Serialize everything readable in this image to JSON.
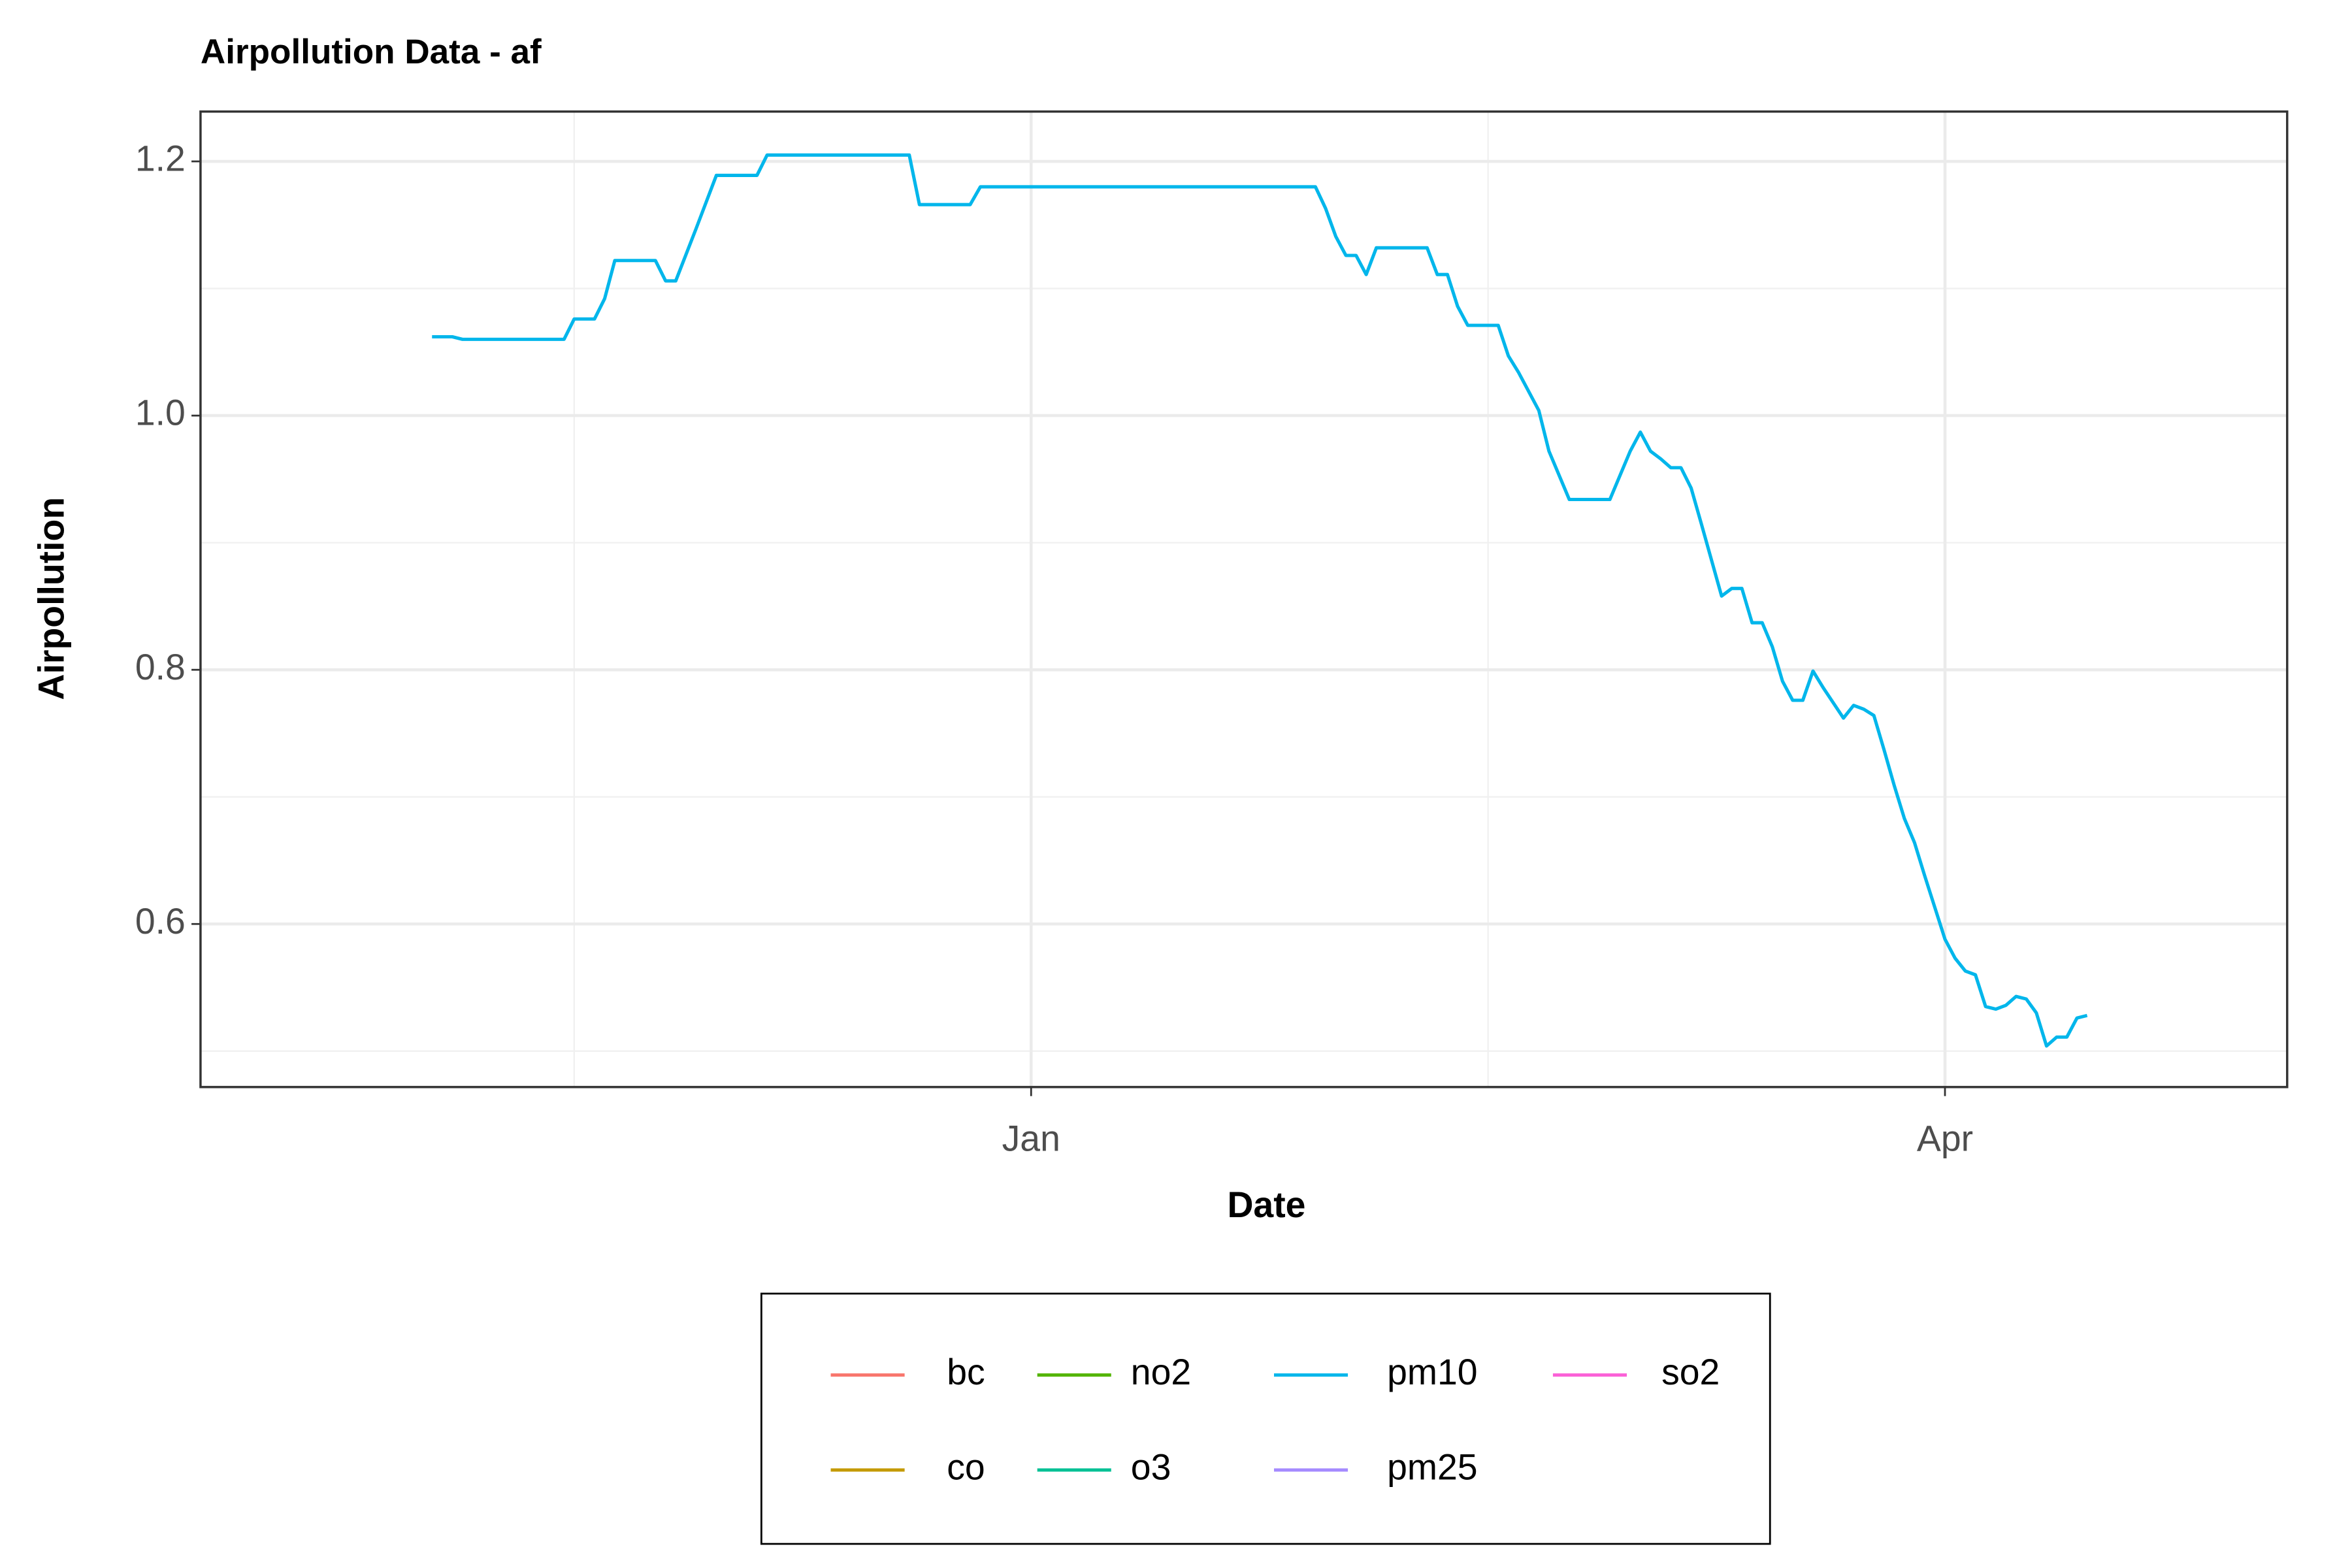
{
  "chart_data": {
    "type": "line",
    "title": "Airpollution Data - af",
    "x_label": "Date",
    "y_label": "Airpollution",
    "xlim": [
      -81.8,
      123.7
    ],
    "xticks": [
      {
        "value": 0,
        "label": "Jan"
      },
      {
        "value": 90,
        "label": "Apr"
      }
    ],
    "ylim": [
      0.4717,
      1.2392
    ],
    "yticks": [
      {
        "value": 0.6,
        "label": "0.6"
      },
      {
        "value": 0.8,
        "label": "0.8"
      },
      {
        "value": 1.0,
        "label": "1.0"
      },
      {
        "value": 1.2,
        "label": "1.2"
      }
    ],
    "grid": true,
    "legend_position": "bottom",
    "series": [
      {
        "name": "bc",
        "color": "#F8766D",
        "x": [],
        "values": []
      },
      {
        "name": "co",
        "color": "#C49A00",
        "x": [],
        "values": []
      },
      {
        "name": "no2",
        "color": "#53B400",
        "x": [],
        "values": []
      },
      {
        "name": "o3",
        "color": "#00C094",
        "x": [],
        "values": []
      },
      {
        "name": "pm10",
        "color": "#00B6EB",
        "x": [
          -59,
          -57,
          -56,
          -46,
          -45,
          -43,
          -42,
          -41,
          -37,
          -36,
          -35,
          -33,
          -31,
          -27,
          -26,
          -12,
          -11,
          -6,
          -5,
          28,
          29,
          30,
          31,
          32,
          33,
          34,
          39,
          40,
          41,
          42,
          43,
          46,
          47,
          48,
          50,
          51,
          53,
          57,
          59,
          60,
          61,
          62,
          63,
          64,
          65,
          66,
          68,
          69,
          70,
          71,
          72,
          73,
          74,
          75,
          76,
          77,
          78,
          79,
          80,
          81,
          82,
          83,
          84,
          85,
          86,
          87,
          88,
          90,
          91,
          92,
          93,
          94,
          95,
          96,
          97,
          98,
          99,
          100,
          101,
          102,
          103,
          104
        ],
        "values": [
          1.062,
          1.062,
          1.06,
          1.06,
          1.076,
          1.076,
          1.092,
          1.122,
          1.122,
          1.106,
          1.106,
          1.147,
          1.189,
          1.189,
          1.205,
          1.205,
          1.166,
          1.166,
          1.18,
          1.18,
          1.163,
          1.141,
          1.126,
          1.126,
          1.111,
          1.132,
          1.132,
          1.111,
          1.111,
          1.086,
          1.071,
          1.071,
          1.047,
          1.034,
          1.004,
          0.972,
          0.934,
          0.934,
          0.972,
          0.987,
          0.972,
          0.966,
          0.959,
          0.959,
          0.943,
          0.915,
          0.858,
          0.864,
          0.864,
          0.837,
          0.837,
          0.818,
          0.791,
          0.776,
          0.776,
          0.799,
          0.786,
          0.774,
          0.762,
          0.772,
          0.769,
          0.764,
          0.737,
          0.709,
          0.683,
          0.664,
          0.638,
          0.588,
          0.573,
          0.563,
          0.56,
          0.535,
          0.533,
          0.536,
          0.543,
          0.541,
          0.53,
          0.504,
          0.511,
          0.511,
          0.526,
          0.528
        ]
      },
      {
        "name": "pm25",
        "color": "#A58AFF",
        "x": [],
        "values": []
      },
      {
        "name": "so2",
        "color": "#FB61D7",
        "x": [],
        "values": []
      }
    ]
  }
}
